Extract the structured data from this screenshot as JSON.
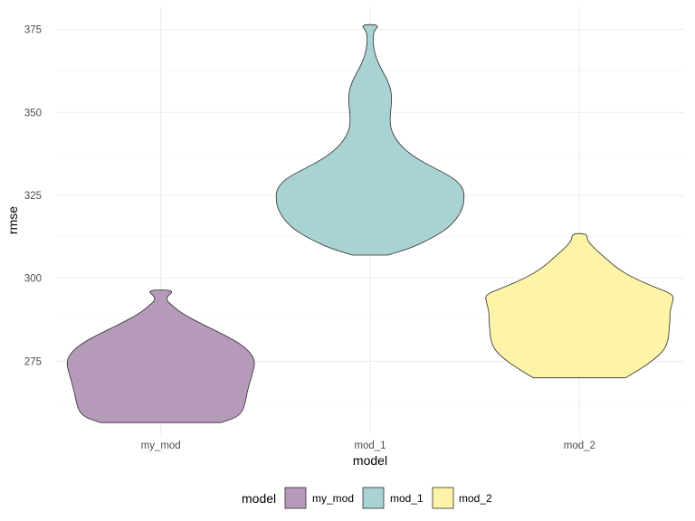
{
  "chart_data": {
    "type": "violin",
    "title": "",
    "xlabel": "model",
    "ylabel": "rmse",
    "ylim": [
      253,
      382
    ],
    "yticks": [
      275,
      300,
      325,
      350,
      375
    ],
    "categories": [
      "my_mod",
      "mod_1",
      "mod_2"
    ],
    "legend": {
      "title": "model",
      "position": "bottom",
      "entries": [
        "my_mod",
        "mod_1",
        "mod_2"
      ]
    },
    "grid": true,
    "series": [
      {
        "name": "my_mod",
        "color": "#b59ab9",
        "min": 256.5,
        "max": 296.5,
        "profile": [
          [
            256.5,
            0.64
          ],
          [
            258,
            0.8
          ],
          [
            260,
            0.87
          ],
          [
            263,
            0.9
          ],
          [
            266,
            0.92
          ],
          [
            269,
            0.95
          ],
          [
            272,
            0.98
          ],
          [
            274.5,
            1.0
          ],
          [
            277,
            0.97
          ],
          [
            280,
            0.86
          ],
          [
            283,
            0.67
          ],
          [
            286,
            0.45
          ],
          [
            289,
            0.25
          ],
          [
            291.5,
            0.13
          ],
          [
            294,
            0.04
          ],
          [
            296.5,
            0.16
          ]
        ]
      },
      {
        "name": "mod_1",
        "color": "#a9d3d2",
        "min": 307,
        "max": 376.5,
        "profile": [
          [
            307,
            0.19
          ],
          [
            309,
            0.42
          ],
          [
            312,
            0.65
          ],
          [
            315,
            0.82
          ],
          [
            318,
            0.92
          ],
          [
            321,
            0.98
          ],
          [
            324,
            1.0
          ],
          [
            327,
            0.99
          ],
          [
            330,
            0.9
          ],
          [
            333,
            0.7
          ],
          [
            336,
            0.5
          ],
          [
            339,
            0.36
          ],
          [
            342,
            0.27
          ],
          [
            345,
            0.22
          ],
          [
            348,
            0.21
          ],
          [
            351,
            0.22
          ],
          [
            354,
            0.23
          ],
          [
            357,
            0.22
          ],
          [
            360,
            0.18
          ],
          [
            363,
            0.12
          ],
          [
            366,
            0.07
          ],
          [
            369,
            0.04
          ],
          [
            372,
            0.03
          ],
          [
            374.5,
            0.04
          ],
          [
            376.5,
            0.1
          ]
        ]
      },
      {
        "name": "mod_2",
        "color": "#fef4a8",
        "min": 270,
        "max": 313.5,
        "profile": [
          [
            270,
            0.49
          ],
          [
            272,
            0.61
          ],
          [
            275,
            0.77
          ],
          [
            278,
            0.89
          ],
          [
            281,
            0.94
          ],
          [
            284,
            0.95
          ],
          [
            287,
            0.96
          ],
          [
            290,
            0.96
          ],
          [
            293,
            0.99
          ],
          [
            295,
            1.0
          ],
          [
            297,
            0.83
          ],
          [
            300,
            0.58
          ],
          [
            303,
            0.4
          ],
          [
            306,
            0.28
          ],
          [
            309,
            0.16
          ],
          [
            311.5,
            0.08
          ],
          [
            313.5,
            0.08
          ]
        ]
      }
    ]
  }
}
